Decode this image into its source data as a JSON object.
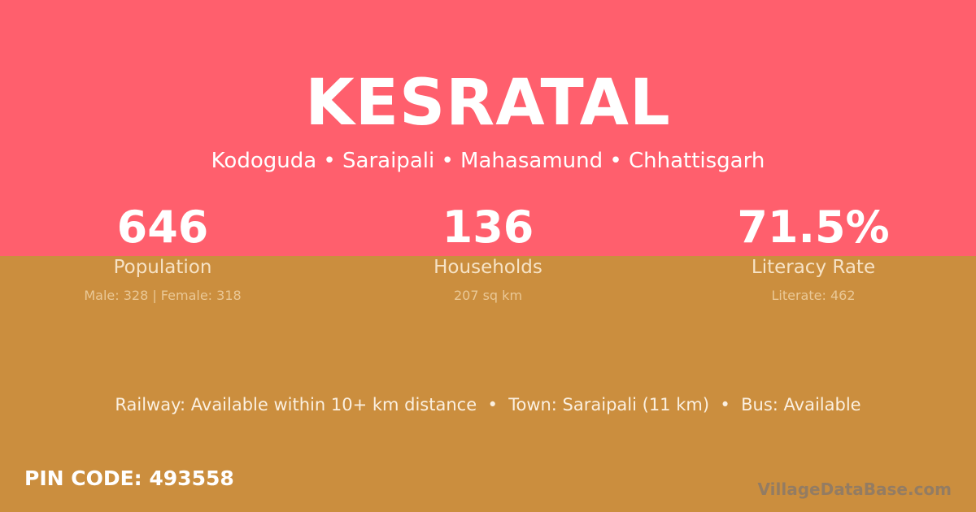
{
  "colors": {
    "top_bg": "#ff5f6d",
    "bottom_bg": "#cb8e3e"
  },
  "village": "KESRATAL",
  "location": "Kodoguda • Saraipali • Mahasamund • Chhattisgarh",
  "stats": [
    {
      "value": "646",
      "label": "Population",
      "detail": "Male: 328 | Female: 318"
    },
    {
      "value": "136",
      "label": "Households",
      "detail": "207 sq km"
    },
    {
      "value": "71.5%",
      "label": "Literacy Rate",
      "detail": "Literate: 462"
    }
  ],
  "transport": "Railway: Available within 10+ km distance  •  Town: Saraipali (11 km)  •  Bus: Available",
  "pin": "PIN CODE: 493558",
  "brand": "VillageDataBase.com"
}
